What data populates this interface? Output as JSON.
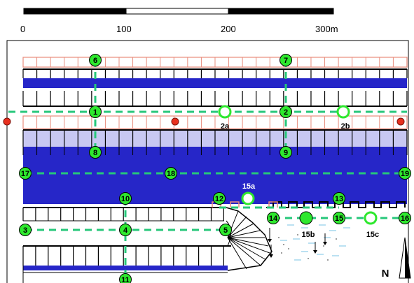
{
  "scale_bar": {
    "labels": [
      "0",
      "100",
      "200",
      "300m"
    ]
  },
  "colors": {
    "dock_dark": "#2626c8",
    "dock_light": "#c8c8f2",
    "slip_outline": "#000000",
    "slip_pink": "#e88c7c",
    "route_dash": "#26c77a",
    "node_fill": "#2ee82e",
    "marker_red": "#e8301e",
    "water_ripple": "#8ecde8"
  },
  "nodes": [
    {
      "id": "1",
      "label": "1"
    },
    {
      "id": "2",
      "label": "2"
    },
    {
      "id": "3",
      "label": "3"
    },
    {
      "id": "4",
      "label": "4"
    },
    {
      "id": "5",
      "label": "5"
    },
    {
      "id": "6",
      "label": "6"
    },
    {
      "id": "7",
      "label": "7"
    },
    {
      "id": "8",
      "label": "8"
    },
    {
      "id": "9",
      "label": "9"
    },
    {
      "id": "10",
      "label": "10"
    },
    {
      "id": "11",
      "label": "11"
    },
    {
      "id": "12",
      "label": "12"
    },
    {
      "id": "13",
      "label": "13"
    },
    {
      "id": "14",
      "label": "14"
    },
    {
      "id": "15",
      "label": "15"
    },
    {
      "id": "16",
      "label": "16"
    },
    {
      "id": "17",
      "label": "17"
    },
    {
      "id": "18",
      "label": "18"
    },
    {
      "id": "19",
      "label": "19"
    }
  ],
  "open_markers": [
    {
      "id": "2a",
      "label": "2a"
    },
    {
      "id": "2b",
      "label": "2b"
    },
    {
      "id": "15a",
      "label": "15a"
    },
    {
      "id": "15c",
      "label": "15c"
    }
  ],
  "filled_markers": [
    {
      "id": "15b",
      "label": "15b"
    }
  ],
  "north_arrow": {
    "label": "N"
  }
}
